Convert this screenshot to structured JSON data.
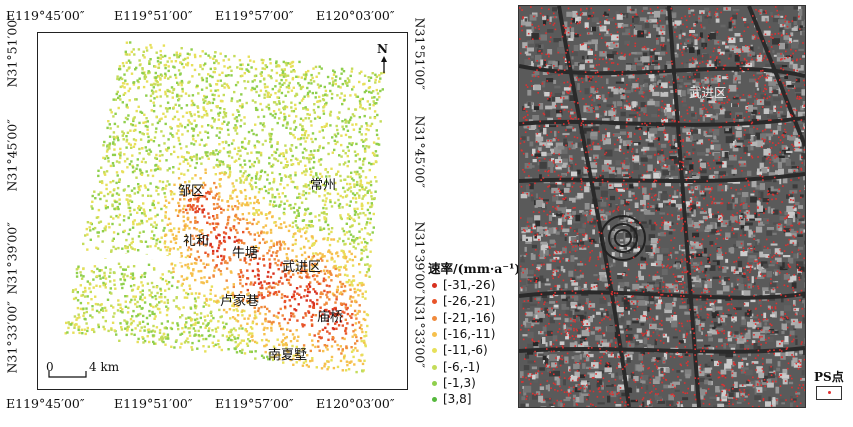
{
  "left_map": {
    "top_coords": [
      "E119°45′00″",
      "E119°51′00″",
      "E119°57′00″",
      "E120°03′00″"
    ],
    "bottom_coords": [
      "E119°45′00″",
      "E119°51′00″",
      "E119°57′00″",
      "E120°03′00″"
    ],
    "left_coords": [
      "N31°51′00″",
      "N31°45′00″",
      "N31°39′00″",
      "N31°33′00″"
    ],
    "right_coords": [
      "N31°51′00″",
      "N31°45′00″",
      "N31°39′00″",
      "N31°33′00″"
    ],
    "north_label": "N",
    "scale_zero": "0",
    "scale_label": "4 km",
    "places": {
      "zouqu": "邹区",
      "changzhou": "常州",
      "lihe": "礼和",
      "niutang": "牛塘",
      "wujinqu": "武进区",
      "lujiaxiang": "卢家巷",
      "yanqiao": "庙桥",
      "nanxiashu": "南夏墅"
    }
  },
  "legend": {
    "title": "速率/(mm·a⁻¹)",
    "items": [
      {
        "label": "[-31,-26)",
        "color": "#d7301f"
      },
      {
        "label": "[-26,-21)",
        "color": "#e8542a"
      },
      {
        "label": "[-21,-16)",
        "color": "#f08a3c"
      },
      {
        "label": "[-16,-11)",
        "color": "#f6c04d"
      },
      {
        "label": "[-11,-6)",
        "color": "#e7e05a"
      },
      {
        "label": "[-6,-1)",
        "color": "#c4dc5a"
      },
      {
        "label": "[-1,3)",
        "color": "#8fcf4c"
      },
      {
        "label": "[3,8]",
        "color": "#55b83c"
      }
    ]
  },
  "right_map": {
    "district_label": "武进区",
    "ps_label": "PS点",
    "ps_color": "#e03030"
  }
}
